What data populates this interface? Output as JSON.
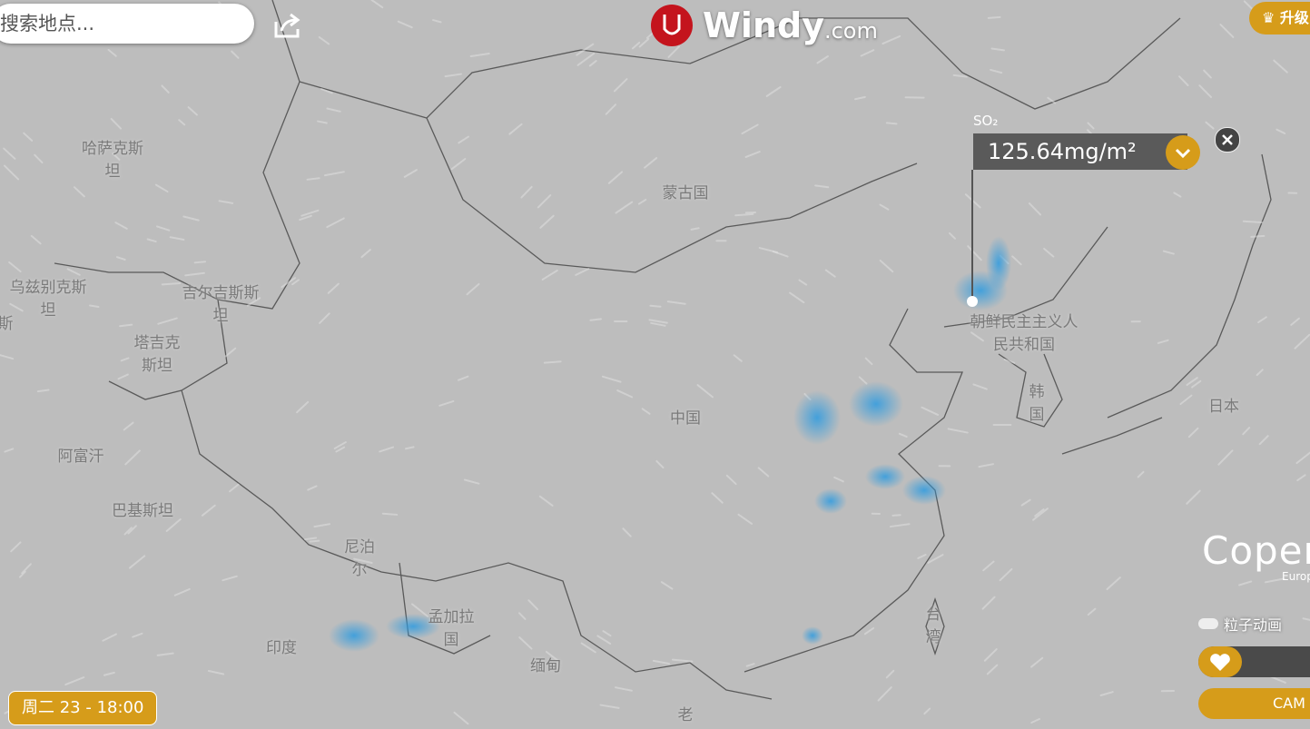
{
  "search": {
    "placeholder": "搜索地点..."
  },
  "logo": {
    "brand": "Windy",
    "suffix": ".com"
  },
  "upgrade": "升级",
  "picker": {
    "label": "SO₂",
    "value": "125.64mg/m²"
  },
  "map": {
    "labels": [
      {
        "lines": [
          "哈萨克斯",
          "坦"
        ]
      },
      {
        "lines": [
          "蒙古国"
        ]
      },
      {
        "lines": [
          "乌兹别克斯",
          "坦"
        ]
      },
      {
        "lines": [
          "斯"
        ]
      },
      {
        "lines": [
          "吉尔吉斯斯",
          "坦"
        ]
      },
      {
        "lines": [
          "塔吉克",
          "斯坦"
        ]
      },
      {
        "lines": [
          "阿富汗"
        ]
      },
      {
        "lines": [
          "巴基斯坦"
        ]
      },
      {
        "lines": [
          "尼泊",
          "尔"
        ]
      },
      {
        "lines": [
          "孟加拉",
          "国"
        ]
      },
      {
        "lines": [
          "印度"
        ]
      },
      {
        "lines": [
          "缅甸"
        ]
      },
      {
        "lines": [
          "中国"
        ]
      },
      {
        "lines": [
          "朝鲜民主主义人",
          "民共和国"
        ]
      },
      {
        "lines": [
          "韩",
          "国"
        ]
      },
      {
        "lines": [
          "日本"
        ]
      },
      {
        "lines": [
          "台",
          "湾"
        ]
      },
      {
        "lines": [
          "老"
        ]
      }
    ]
  },
  "provider": {
    "name": "Coper",
    "sub": "Europ"
  },
  "controls": {
    "particles": "粒子动画",
    "cam": "CAM"
  },
  "timestamp": "周二 23 - 18:00"
}
